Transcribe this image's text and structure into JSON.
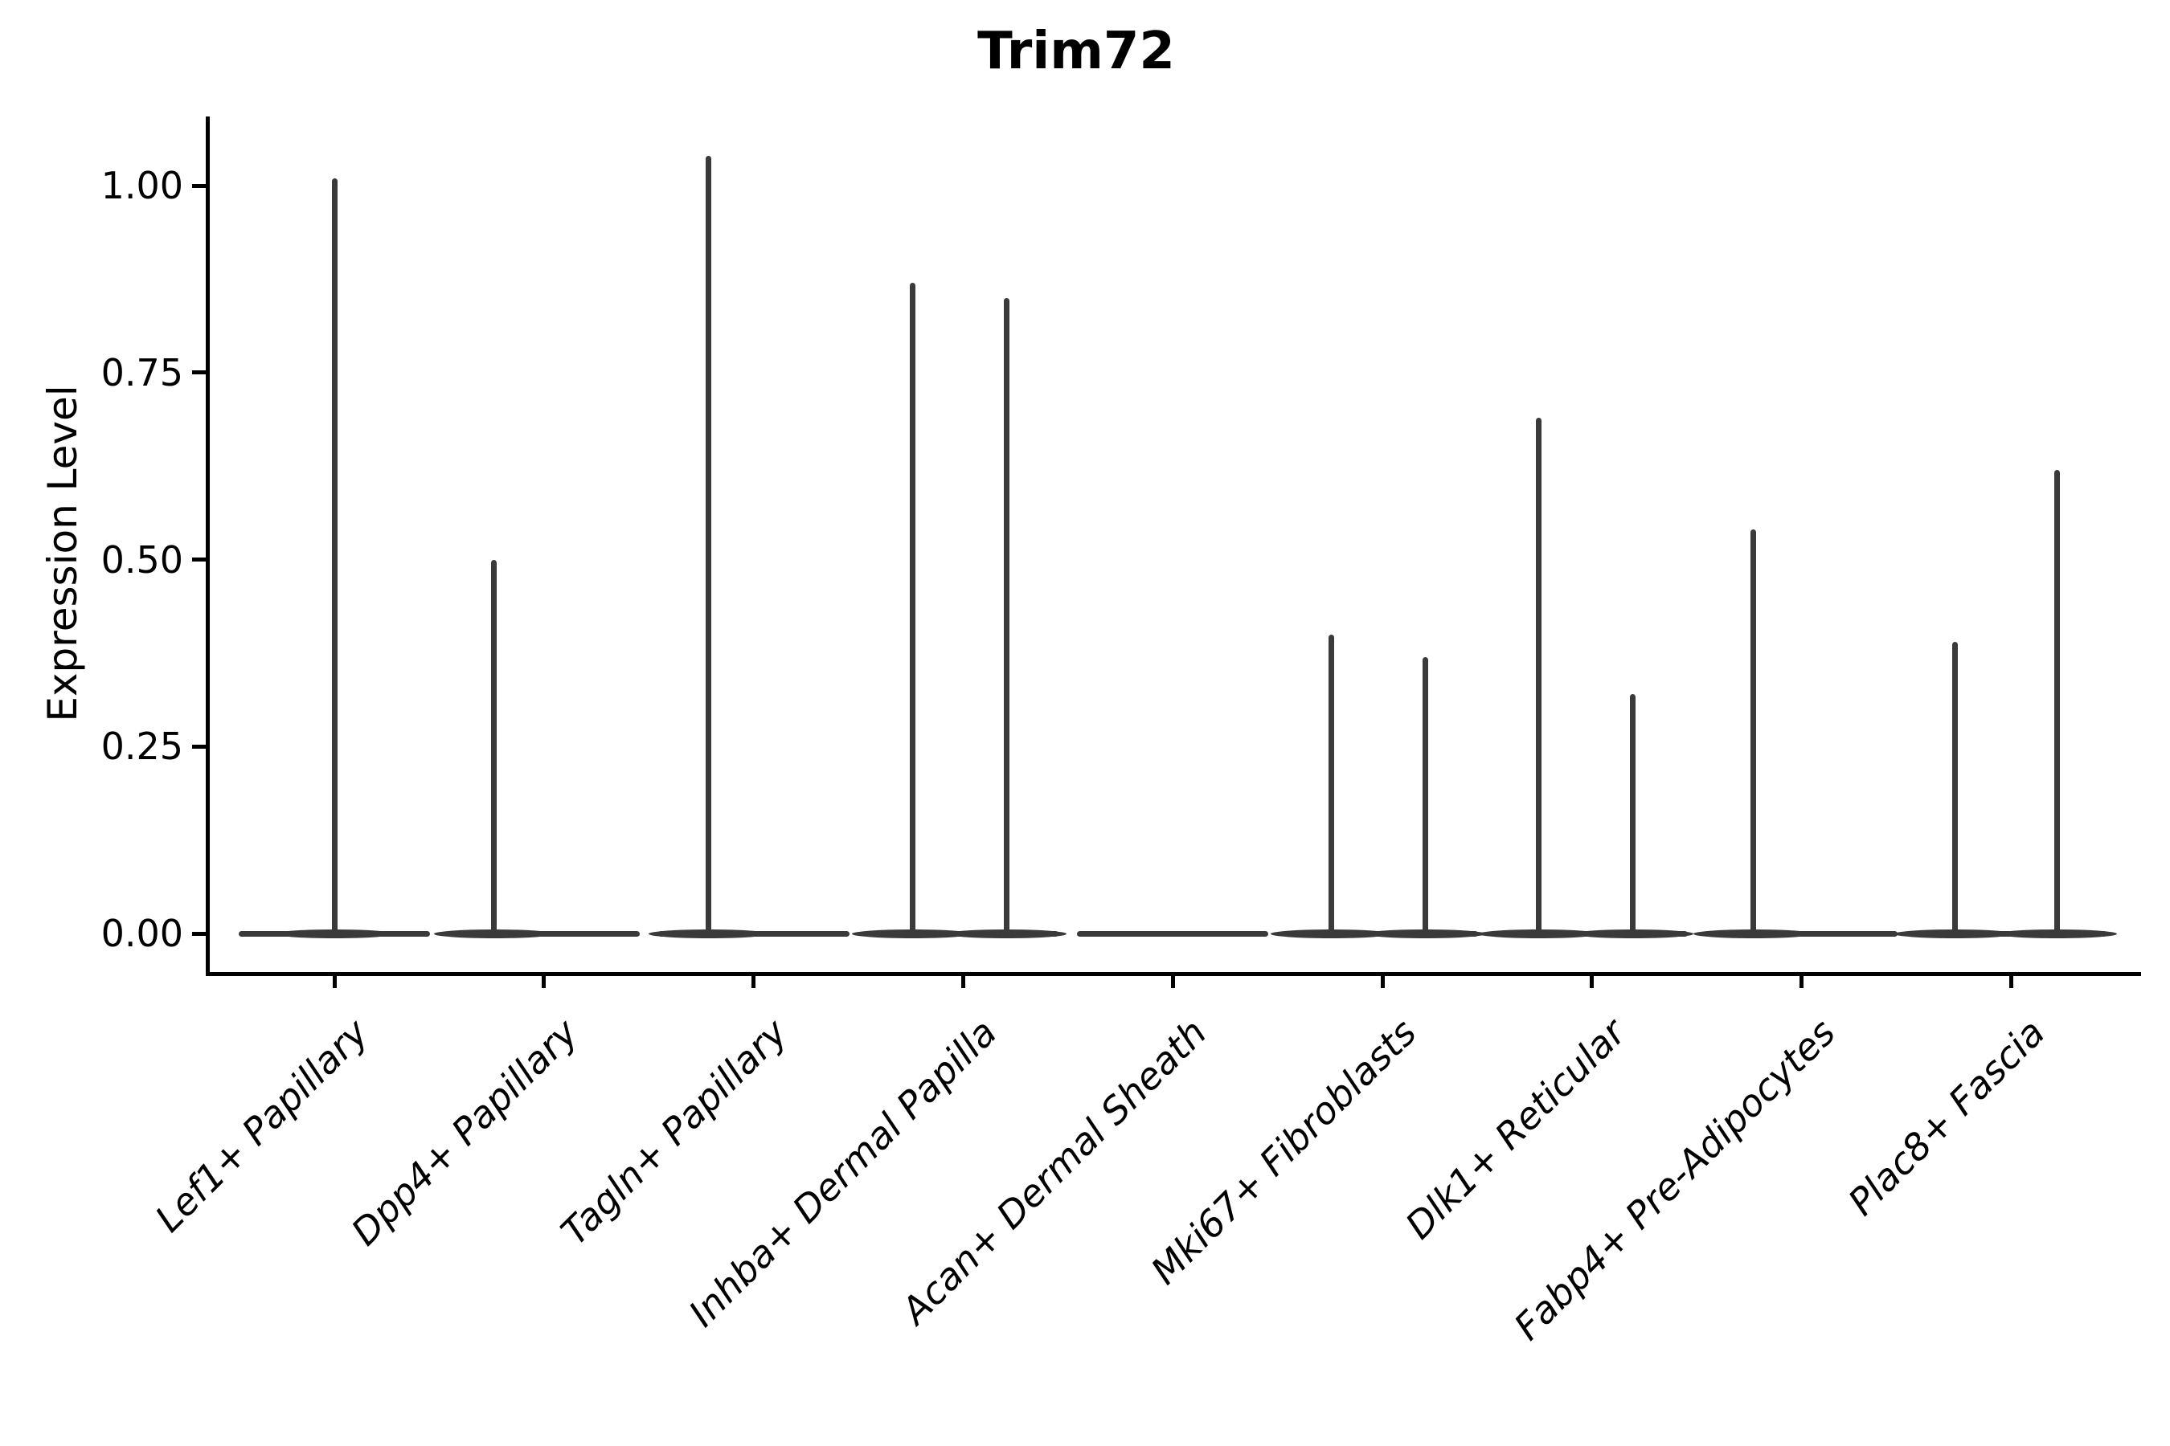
{
  "chart_data": {
    "type": "violin",
    "title": "Trim72",
    "ylabel": "Expression Level",
    "xlabel": "",
    "ytick_labels": [
      "0.00",
      "0.25",
      "0.50",
      "0.75",
      "1.00"
    ],
    "ytick_values": [
      0.0,
      0.25,
      0.5,
      0.75,
      1.0
    ],
    "ylim": [
      -0.052,
      1.092
    ],
    "grid": false,
    "legend": "none",
    "x_label_rotation_deg": 45,
    "x_label_style": "italic",
    "categories": [
      "Lef1+ Papillary",
      "Dpp4+ Papillary",
      "Tagln+ Papillary",
      "Inhba+ Dermal Papilla",
      "Acan+ Dermal Sheath",
      "Mki67+ Fibroblasts",
      "Dlk1+ Reticular",
      "Fabp4+ Pre-Adipocytes",
      "Plac8+ Fascia"
    ],
    "series": [
      {
        "category": "Lef1+ Papillary",
        "needles": [
          {
            "dx": 0,
            "value": 1.01
          }
        ]
      },
      {
        "category": "Dpp4+ Papillary",
        "needles": [
          {
            "dx": -62,
            "value": 0.5
          }
        ]
      },
      {
        "category": "Tagln+ Papillary",
        "needles": [
          {
            "dx": -56,
            "value": 1.04
          }
        ]
      },
      {
        "category": "Inhba+ Dermal Papilla",
        "needles": [
          {
            "dx": -63,
            "value": 0.87
          },
          {
            "dx": 54,
            "value": 0.85
          }
        ]
      },
      {
        "category": "Acan+ Dermal Sheath",
        "needles": []
      },
      {
        "category": "Mki67+ Fibroblasts",
        "needles": [
          {
            "dx": -64,
            "value": 0.4
          },
          {
            "dx": 53,
            "value": 0.37
          }
        ]
      },
      {
        "category": "Dlk1+ Reticular",
        "needles": [
          {
            "dx": -66,
            "value": 0.69
          },
          {
            "dx": 51,
            "value": 0.32
          }
        ]
      },
      {
        "category": "Fabp4+ Pre-Adipocytes",
        "needles": [
          {
            "dx": -60,
            "value": 0.54
          }
        ]
      },
      {
        "category": "Plac8+ Fascia",
        "needles": [
          {
            "dx": -70,
            "value": 0.39
          },
          {
            "dx": 57,
            "value": 0.62
          }
        ]
      }
    ],
    "colors": {
      "violin": "#3a3a3a",
      "axis": "#000000",
      "background": "#ffffff"
    }
  }
}
